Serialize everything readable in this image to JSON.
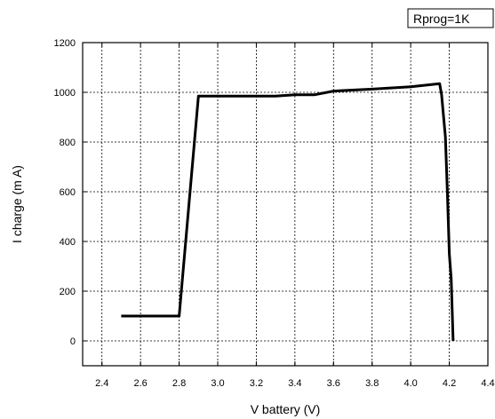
{
  "chart_data": {
    "type": "line",
    "title": "",
    "xlabel": "V battery (V)",
    "ylabel": "I charge (m A)",
    "xlim": [
      2.3,
      4.4
    ],
    "ylim": [
      -100,
      1200
    ],
    "x_ticks": [
      2.4,
      2.6,
      2.8,
      3.0,
      3.2,
      3.4,
      3.6,
      3.8,
      4.0,
      4.2,
      4.4
    ],
    "x_tick_labels": [
      "2.4",
      "2.6",
      "2.8",
      "3.0",
      "3.2",
      "3.4",
      "3.6",
      "3.8",
      "4.0",
      "4.2",
      "4.4"
    ],
    "y_ticks": [
      0,
      200,
      400,
      600,
      800,
      1000,
      1200
    ],
    "y_tick_labels": [
      "0",
      "200",
      "400",
      "600",
      "800",
      "1000",
      "1200"
    ],
    "grid": true,
    "legend_placement": "top-right",
    "legend_text": "Rprog=1K",
    "series": [
      {
        "x": [
          2.5,
          2.8,
          2.9,
          3.0,
          3.2,
          3.3,
          3.4,
          3.5,
          3.6,
          3.8,
          4.0,
          4.15,
          4.16,
          4.18,
          4.19,
          4.2,
          4.21,
          4.22
        ],
        "y": [
          100,
          100,
          985,
          985,
          985,
          985,
          990,
          990,
          1005,
          1013,
          1022,
          1035,
          990,
          820,
          600,
          350,
          250,
          0
        ],
        "color": "#000000"
      }
    ]
  }
}
